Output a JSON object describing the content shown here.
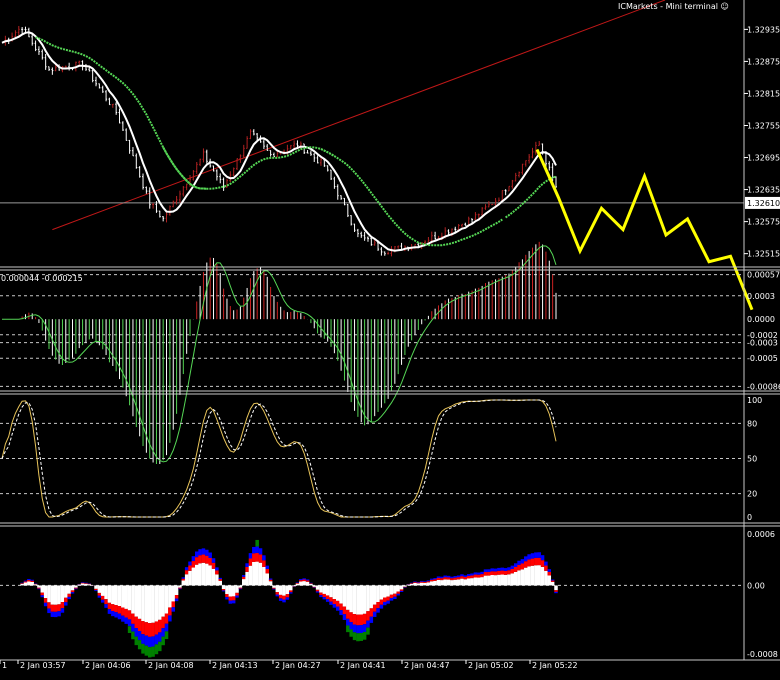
{
  "terminal_title": "ICMarkets - Mini terminal ☺",
  "colors": {
    "background": "#000000",
    "bull_bar": "#b22222",
    "bear_bar": "#ffffff",
    "ma_white": "#ffffff",
    "ma_green": "#55d655",
    "trendline": "#c01818",
    "forecast": "#ffff00",
    "grid": "#c8c8c8",
    "separator": "#c8c8c8",
    "macd_bull": "#cc2222",
    "macd_bear": "#55d655",
    "stoch_main": "#e8c45a",
    "stoch_signal": "#ffffff",
    "osc_red": "#ff0000",
    "osc_blue": "#0000ff",
    "osc_green": "#008000",
    "osc_white": "#ffffff"
  },
  "chart_data": [
    {
      "type": "candlestick",
      "panel": "main",
      "y_ticks": [
        "1.32935",
        "1.32875",
        "1.32815",
        "1.32755",
        "1.32695",
        "1.32635",
        "1.32575",
        "1.32515"
      ],
      "ylim": [
        1.3249,
        1.3299
      ],
      "current_price": "1.32610",
      "approx_close_path": [
        {
          "bar": 0,
          "price": 1.3291
        },
        {
          "bar": 6,
          "price": 1.3294
        },
        {
          "bar": 14,
          "price": 1.3286
        },
        {
          "bar": 24,
          "price": 1.3287
        },
        {
          "bar": 34,
          "price": 1.3278
        },
        {
          "bar": 44,
          "price": 1.3261
        },
        {
          "bar": 48,
          "price": 1.3258
        },
        {
          "bar": 56,
          "price": 1.3266
        },
        {
          "bar": 60,
          "price": 1.327
        },
        {
          "bar": 66,
          "price": 1.3264
        },
        {
          "bar": 74,
          "price": 1.3274
        },
        {
          "bar": 80,
          "price": 1.327
        },
        {
          "bar": 88,
          "price": 1.3272
        },
        {
          "bar": 96,
          "price": 1.3268
        },
        {
          "bar": 106,
          "price": 1.3255
        },
        {
          "bar": 114,
          "price": 1.3252
        },
        {
          "bar": 122,
          "price": 1.3253
        },
        {
          "bar": 130,
          "price": 1.3255
        },
        {
          "bar": 140,
          "price": 1.3258
        },
        {
          "bar": 148,
          "price": 1.3262
        },
        {
          "bar": 156,
          "price": 1.3269
        },
        {
          "bar": 160,
          "price": 1.3272
        },
        {
          "bar": 165,
          "price": 1.3264
        }
      ],
      "forecast_path": [
        {
          "step": 0,
          "price": 1.3271
        },
        {
          "step": 1,
          "price": 1.3262
        },
        {
          "step": 2,
          "price": 1.3252
        },
        {
          "step": 3,
          "price": 1.326
        },
        {
          "step": 4,
          "price": 1.3256
        },
        {
          "step": 5,
          "price": 1.3266
        },
        {
          "step": 6,
          "price": 1.3255
        },
        {
          "step": 7,
          "price": 1.3258
        },
        {
          "step": 8,
          "price": 1.325
        },
        {
          "step": 9,
          "price": 1.3251
        },
        {
          "step": 10,
          "price": 1.3241
        }
      ]
    },
    {
      "type": "bar",
      "panel": "macd",
      "header": "0.000044 -0.000215",
      "y_ticks": [
        "0.00057",
        "0.0003",
        "0.0000",
        "-0.0002",
        "-0.0003",
        "-0.0005",
        "-0.00086"
      ],
      "ylim": [
        -0.00092,
        0.00063
      ]
    },
    {
      "type": "line",
      "panel": "stochastic",
      "y_ticks": [
        "100",
        "80",
        "50",
        "20",
        "0"
      ],
      "levels": [
        80,
        50,
        20
      ],
      "ylim": [
        0,
        100
      ]
    },
    {
      "type": "area",
      "panel": "oscillator",
      "y_ticks": [
        "0.0006",
        "0.00",
        "-0.0008"
      ],
      "ylim": [
        -0.0008,
        0.0006
      ]
    }
  ],
  "x_ticks": [
    "1",
    "2 Jan 03:57",
    "2 Jan 04:06",
    "2 Jan 04:08",
    "2 Jan 04:13",
    "2 Jan 04:27",
    "2 Jan 04:41",
    "2 Jan 04:47",
    "2 Jan 05:02",
    "2 Jan 05:22"
  ]
}
